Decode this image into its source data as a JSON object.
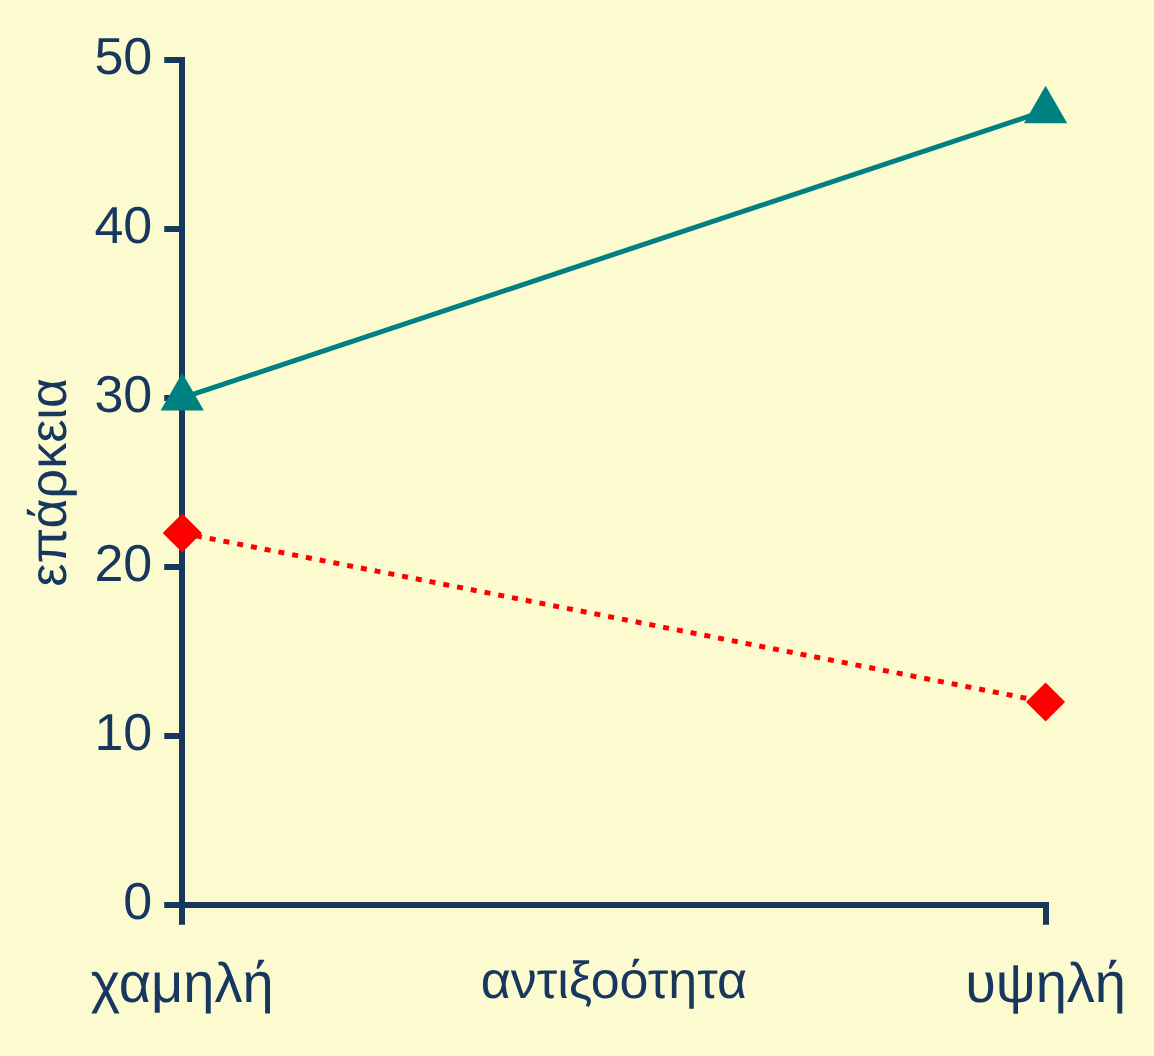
{
  "chart_data": {
    "type": "line",
    "xlabel": "αντιξοότητα",
    "ylabel": "επάρκεια",
    "categories": [
      "χαμηλή",
      "υψηλή"
    ],
    "series": [
      {
        "color": "#008080",
        "values": [
          30,
          47
        ],
        "marker": "triangle",
        "line_style": "solid"
      },
      {
        "color": "#ff0000",
        "values": [
          22,
          12
        ],
        "marker": "diamond",
        "line_style": "dotted"
      }
    ],
    "ylim": [
      0,
      50
    ],
    "yticks": [
      0,
      10,
      20,
      30,
      40,
      50
    ],
    "grid": false,
    "legend": false
  }
}
